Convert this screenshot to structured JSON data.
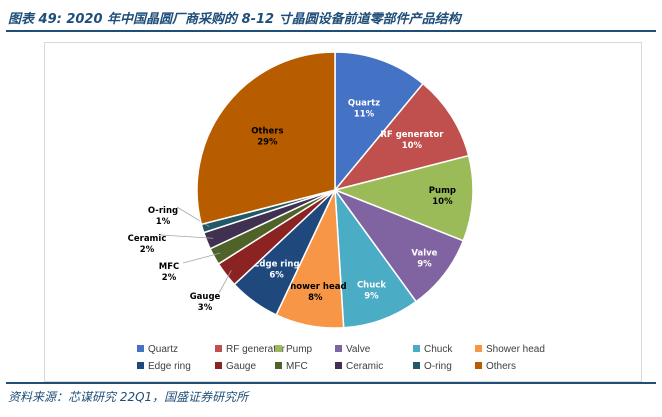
{
  "header": {
    "title": "图表 49:  2020 年中国晶圆厂商采购的 8-12 寸晶圆设备前道零部件产品结构"
  },
  "footer": {
    "source": "资料来源：芯谋研究 22Q1，国盛证券研究所"
  },
  "chart_data": {
    "type": "pie",
    "title": "",
    "start_angle_deg": 0,
    "direction": "clockwise",
    "categories": [
      "Quartz",
      "RF generator",
      "Pump",
      "Valve",
      "Chuck",
      "Shower head",
      "Edge ring",
      "Gauge",
      "MFC",
      "Ceramic",
      "O-ring",
      "Others"
    ],
    "values": [
      11,
      10,
      10,
      9,
      9,
      8,
      6,
      3,
      2,
      2,
      1,
      29
    ],
    "value_labels": [
      "11%",
      "10%",
      "10%",
      "9%",
      "9%",
      "8%",
      "6%",
      "3%",
      "2%",
      "2%",
      "1%",
      "29%"
    ],
    "colors": [
      "#4472c4",
      "#c0504d",
      "#9bbb59",
      "#8064a2",
      "#4bacc6",
      "#f79646",
      "#1f497d",
      "#8b2323",
      "#4f6228",
      "#403151",
      "#215968",
      "#b85c00"
    ],
    "legend_position": "bottom"
  }
}
